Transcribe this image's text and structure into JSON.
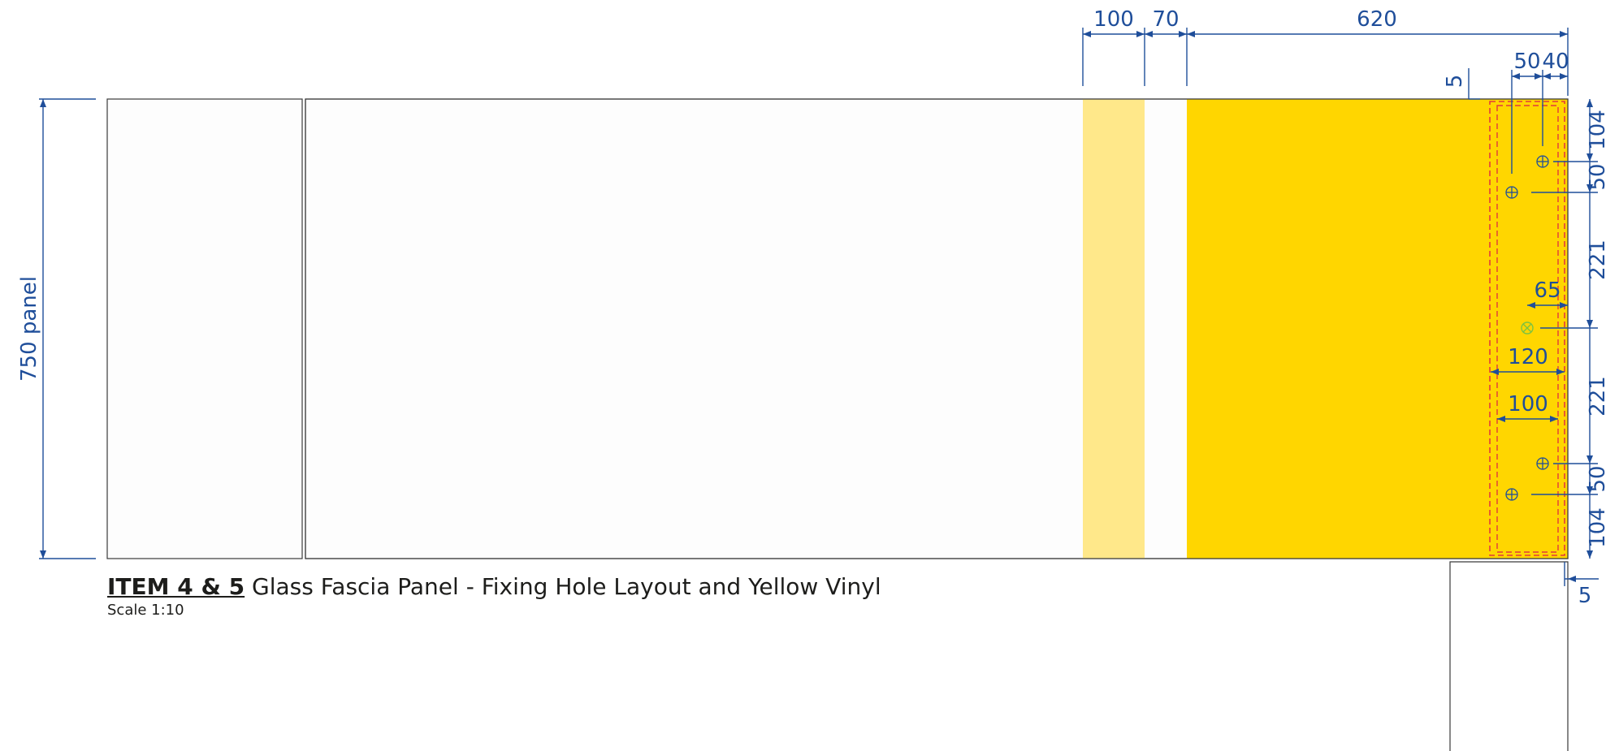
{
  "caption": {
    "item": "ITEM 4 & 5",
    "title": " Glass Fascia Panel - Fixing Hole Layout and Yellow Vinyl",
    "scale": "Scale 1:10"
  },
  "dimensions": {
    "panel_height": "750 panel",
    "top_100": "100",
    "top_70": "70",
    "top_620": "620",
    "edge_5_top": "5",
    "hole_50": "50",
    "hole_40": "40",
    "offset_65": "65",
    "width_120": "120",
    "width_100": "100",
    "edge_5_bottom": "5",
    "right_104_a": "104",
    "right_50_a": "50",
    "right_221_a": "221",
    "right_221_b": "221",
    "right_50_b": "50",
    "right_104_b": "104"
  },
  "colors": {
    "vinyl_yellow": "#ffd600",
    "vinyl_pale": "#ffe88a",
    "dimension_blue": "#1f4e9a",
    "cut_line_red": "#e23b3b",
    "centre_hole_green": "#7cc241"
  }
}
